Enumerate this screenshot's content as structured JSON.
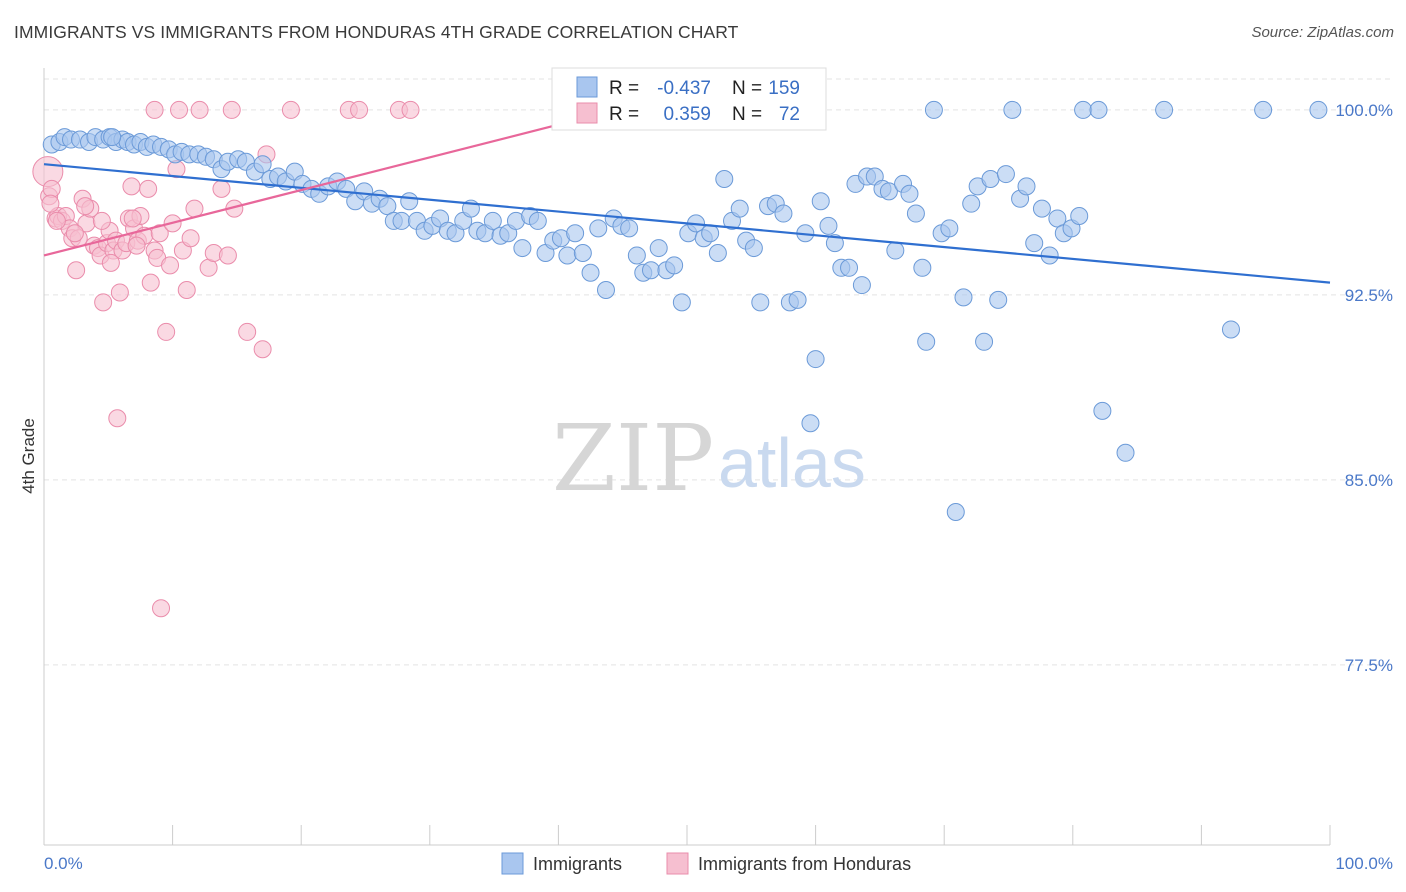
{
  "header": {
    "title": "IMMIGRANTS VS IMMIGRANTS FROM HONDURAS 4TH GRADE CORRELATION CHART",
    "source": "Source: ZipAtlas.com"
  },
  "watermark": {
    "zip": "ZIP",
    "atlas": "atlas"
  },
  "stats_box": {
    "rows": [
      {
        "r_label": "R =",
        "r_value": "-0.437",
        "n_label": "N =",
        "n_value": "159"
      },
      {
        "r_label": "R =",
        "r_value": "0.359",
        "n_label": "N =",
        "n_value": "72"
      }
    ]
  },
  "legend": {
    "items": [
      {
        "label": "Immigrants"
      },
      {
        "label": "Immigrants from Honduras"
      }
    ]
  },
  "colors": {
    "blue_fill": "#a9c6ef",
    "blue_stroke": "#6b9ad8",
    "blue_line": "#2f6fd0",
    "pink_fill": "#f6bfd0",
    "pink_stroke": "#ea8cab",
    "pink_line": "#e8679a",
    "grid": "#e3e3e3",
    "tick_label": "#4a78c8"
  },
  "chart_data": {
    "type": "scatter",
    "title": "IMMIGRANTS VS IMMIGRANTS FROM HONDURAS 4TH GRADE CORRELATION CHART",
    "xlabel": "",
    "ylabel": "4th Grade",
    "xlim": [
      0,
      100
    ],
    "ylim": [
      70.2,
      101.7
    ],
    "x_tick_labels": [
      "0.0%",
      "100.0%"
    ],
    "y_ticks": [
      {
        "value": 100.0,
        "label": "100.0%"
      },
      {
        "value": 92.5,
        "label": "92.5%"
      },
      {
        "value": 85.0,
        "label": "85.0%"
      },
      {
        "value": 77.5,
        "label": "77.5%"
      }
    ],
    "grid": true,
    "series": [
      {
        "name": "Immigrants",
        "R": -0.437,
        "N": 159,
        "trend": {
          "x1": 0,
          "y1": 97.8,
          "x2": 100,
          "y2": 93.0
        },
        "points": [
          [
            0.6,
            98.6
          ],
          [
            1.2,
            98.7
          ],
          [
            1.6,
            98.9
          ],
          [
            2.1,
            98.8
          ],
          [
            2.8,
            98.8
          ],
          [
            3.5,
            98.7
          ],
          [
            4.0,
            98.9
          ],
          [
            4.6,
            98.8
          ],
          [
            5.1,
            98.9
          ],
          [
            5.6,
            98.7
          ],
          [
            6.1,
            98.8
          ],
          [
            6.5,
            98.7
          ],
          [
            7.0,
            98.6
          ],
          [
            7.5,
            98.7
          ],
          [
            8.0,
            98.5
          ],
          [
            8.5,
            98.6
          ],
          [
            9.1,
            98.5
          ],
          [
            9.7,
            98.4
          ],
          [
            10.2,
            98.2
          ],
          [
            10.7,
            98.3
          ],
          [
            11.3,
            98.2
          ],
          [
            12.0,
            98.2
          ],
          [
            12.6,
            98.1
          ],
          [
            13.2,
            98.0
          ],
          [
            13.8,
            97.6
          ],
          [
            14.3,
            97.9
          ],
          [
            15.1,
            98.0
          ],
          [
            15.7,
            97.9
          ],
          [
            16.4,
            97.5
          ],
          [
            17.0,
            97.8
          ],
          [
            17.6,
            97.2
          ],
          [
            18.2,
            97.3
          ],
          [
            18.8,
            97.1
          ],
          [
            19.5,
            97.5
          ],
          [
            20.1,
            97.0
          ],
          [
            20.8,
            96.8
          ],
          [
            21.4,
            96.6
          ],
          [
            22.1,
            96.9
          ],
          [
            22.8,
            97.1
          ],
          [
            23.5,
            96.8
          ],
          [
            24.2,
            96.3
          ],
          [
            24.9,
            96.7
          ],
          [
            25.5,
            96.2
          ],
          [
            26.1,
            96.4
          ],
          [
            26.7,
            96.1
          ],
          [
            27.2,
            95.5
          ],
          [
            27.8,
            95.5
          ],
          [
            28.4,
            96.3
          ],
          [
            29.0,
            95.5
          ],
          [
            29.6,
            95.1
          ],
          [
            30.2,
            95.3
          ],
          [
            30.8,
            95.6
          ],
          [
            31.4,
            95.1
          ],
          [
            32.0,
            95.0
          ],
          [
            32.6,
            95.5
          ],
          [
            33.2,
            96.0
          ],
          [
            33.7,
            95.1
          ],
          [
            34.3,
            95.0
          ],
          [
            34.9,
            95.5
          ],
          [
            35.5,
            94.9
          ],
          [
            36.1,
            95.0
          ],
          [
            36.7,
            95.5
          ],
          [
            37.2,
            94.4
          ],
          [
            37.8,
            95.7
          ],
          [
            38.4,
            95.5
          ],
          [
            39.0,
            94.2
          ],
          [
            39.6,
            94.7
          ],
          [
            40.2,
            94.8
          ],
          [
            40.7,
            94.1
          ],
          [
            41.3,
            95.0
          ],
          [
            41.9,
            94.2
          ],
          [
            42.5,
            93.4
          ],
          [
            43.1,
            95.2
          ],
          [
            43.7,
            92.7
          ],
          [
            44.3,
            95.6
          ],
          [
            44.9,
            95.3
          ],
          [
            45.5,
            95.2
          ],
          [
            46.1,
            94.1
          ],
          [
            46.6,
            93.4
          ],
          [
            47.2,
            93.5
          ],
          [
            47.8,
            94.4
          ],
          [
            48.4,
            93.5
          ],
          [
            49.0,
            93.7
          ],
          [
            49.6,
            92.2
          ],
          [
            50.1,
            95.0
          ],
          [
            50.7,
            95.4
          ],
          [
            51.3,
            94.8
          ],
          [
            51.8,
            95.0
          ],
          [
            52.4,
            94.2
          ],
          [
            52.9,
            97.2
          ],
          [
            53.5,
            95.5
          ],
          [
            54.1,
            96.0
          ],
          [
            54.6,
            94.7
          ],
          [
            55.2,
            94.4
          ],
          [
            55.7,
            92.2
          ],
          [
            56.3,
            96.1
          ],
          [
            56.9,
            96.2
          ],
          [
            57.5,
            95.8
          ],
          [
            58.0,
            92.2
          ],
          [
            58.6,
            92.3
          ],
          [
            59.2,
            95.0
          ],
          [
            59.6,
            87.3
          ],
          [
            60.0,
            89.9
          ],
          [
            60.4,
            96.3
          ],
          [
            61.0,
            95.3
          ],
          [
            61.5,
            94.6
          ],
          [
            62.0,
            93.6
          ],
          [
            62.6,
            93.6
          ],
          [
            63.1,
            97.0
          ],
          [
            63.6,
            92.9
          ],
          [
            64.0,
            97.3
          ],
          [
            64.6,
            97.3
          ],
          [
            65.2,
            96.8
          ],
          [
            65.7,
            96.7
          ],
          [
            66.2,
            94.3
          ],
          [
            66.8,
            97.0
          ],
          [
            67.3,
            96.6
          ],
          [
            67.8,
            95.8
          ],
          [
            68.3,
            93.6
          ],
          [
            68.6,
            90.6
          ],
          [
            69.2,
            100.0
          ],
          [
            69.8,
            95.0
          ],
          [
            70.4,
            95.2
          ],
          [
            70.9,
            83.7
          ],
          [
            71.5,
            92.4
          ],
          [
            72.1,
            96.2
          ],
          [
            72.6,
            96.9
          ],
          [
            73.1,
            90.6
          ],
          [
            73.6,
            97.2
          ],
          [
            74.2,
            92.3
          ],
          [
            74.8,
            97.4
          ],
          [
            75.3,
            100.0
          ],
          [
            75.9,
            96.4
          ],
          [
            76.4,
            96.9
          ],
          [
            77.0,
            94.6
          ],
          [
            77.6,
            96.0
          ],
          [
            78.2,
            94.1
          ],
          [
            78.8,
            95.6
          ],
          [
            79.3,
            95.0
          ],
          [
            79.9,
            95.2
          ],
          [
            80.5,
            95.7
          ],
          [
            80.8,
            100.0
          ],
          [
            82.0,
            100.0
          ],
          [
            82.3,
            87.8
          ],
          [
            84.1,
            86.1
          ],
          [
            87.1,
            100.0
          ],
          [
            92.3,
            91.1
          ],
          [
            94.8,
            100.0
          ],
          [
            99.1,
            100.0
          ],
          [
            5.3,
            98.9
          ]
        ]
      },
      {
        "name": "Immigrants from Honduras",
        "R": 0.359,
        "N": 72,
        "trend": {
          "x1": 0,
          "y1": 94.1,
          "x2": 44.5,
          "y2": 100.0
        },
        "points": [
          [
            0.3,
            97.5
          ],
          [
            0.4,
            96.5
          ],
          [
            0.6,
            96.8
          ],
          [
            0.9,
            95.6
          ],
          [
            1.1,
            95.7
          ],
          [
            1.4,
            95.5
          ],
          [
            1.7,
            95.7
          ],
          [
            2.0,
            95.2
          ],
          [
            2.2,
            94.8
          ],
          [
            2.5,
            93.5
          ],
          [
            2.7,
            94.8
          ],
          [
            3.0,
            96.4
          ],
          [
            3.3,
            95.4
          ],
          [
            3.6,
            96.0
          ],
          [
            3.9,
            94.5
          ],
          [
            4.2,
            94.4
          ],
          [
            4.4,
            94.1
          ],
          [
            4.6,
            92.2
          ],
          [
            4.9,
            94.6
          ],
          [
            5.1,
            95.1
          ],
          [
            5.4,
            94.3
          ],
          [
            5.6,
            94.7
          ],
          [
            5.9,
            92.6
          ],
          [
            6.1,
            94.3
          ],
          [
            6.4,
            94.6
          ],
          [
            6.6,
            95.6
          ],
          [
            6.8,
            96.9
          ],
          [
            7.0,
            95.2
          ],
          [
            7.3,
            94.7
          ],
          [
            7.5,
            95.7
          ],
          [
            7.8,
            94.9
          ],
          [
            8.1,
            96.8
          ],
          [
            8.3,
            93.0
          ],
          [
            8.6,
            94.3
          ],
          [
            8.8,
            94.0
          ],
          [
            9.1,
            79.8
          ],
          [
            9.5,
            91.0
          ],
          [
            9.8,
            93.7
          ],
          [
            10.3,
            97.6
          ],
          [
            10.8,
            94.3
          ],
          [
            11.1,
            92.7
          ],
          [
            11.7,
            96.0
          ],
          [
            12.8,
            93.6
          ],
          [
            13.2,
            94.2
          ],
          [
            13.8,
            96.8
          ],
          [
            14.3,
            94.1
          ],
          [
            14.8,
            96.0
          ],
          [
            15.8,
            91.0
          ],
          [
            17.0,
            90.3
          ],
          [
            17.3,
            98.2
          ],
          [
            8.6,
            100.0
          ],
          [
            10.5,
            100.0
          ],
          [
            12.1,
            100.0
          ],
          [
            14.6,
            100.0
          ],
          [
            19.2,
            100.0
          ],
          [
            23.7,
            100.0
          ],
          [
            24.5,
            100.0
          ],
          [
            27.6,
            100.0
          ],
          [
            28.5,
            100.0
          ],
          [
            44.2,
            100.0
          ],
          [
            5.7,
            87.5
          ],
          [
            4.5,
            95.5
          ],
          [
            6.9,
            95.6
          ],
          [
            9.0,
            95.0
          ],
          [
            3.2,
            96.1
          ],
          [
            1.0,
            95.5
          ],
          [
            2.4,
            95.0
          ],
          [
            7.2,
            94.5
          ],
          [
            5.2,
            93.8
          ],
          [
            10.0,
            95.4
          ],
          [
            11.4,
            94.8
          ],
          [
            0.5,
            96.2
          ]
        ]
      }
    ]
  }
}
